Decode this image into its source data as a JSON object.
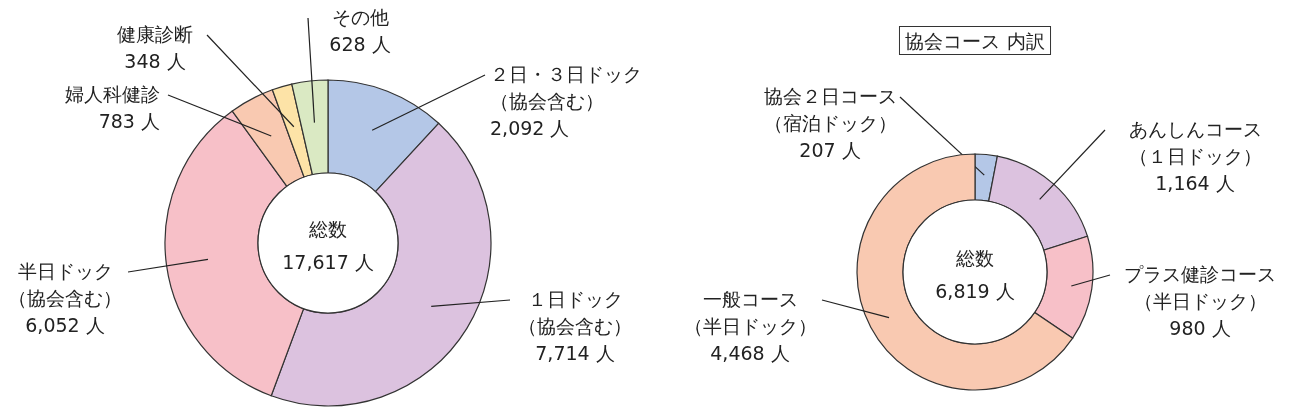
{
  "chart_data": [
    {
      "type": "donut",
      "categories": [
        "２日・３日ドック（協会含む）",
        "１日ドック（協会含む）",
        "半日ドック（協会含む）",
        "婦人科健診",
        "健康診断",
        "その他"
      ],
      "values": [
        2092,
        7714,
        6052,
        783,
        348,
        628
      ],
      "value_labels": [
        "2,092 人",
        "7,714 人",
        "6,052 人",
        "783 人",
        "348 人",
        "628 人"
      ],
      "colors": [
        "#b4c7e7",
        "#dcc2df",
        "#f7c0c8",
        "#f9c9b1",
        "#fde3a7",
        "#dae9c3"
      ],
      "annotations": [
        "総数",
        "17,617 人"
      ]
    },
    {
      "type": "donut",
      "title": "協会コース 内訳",
      "categories": [
        "協会２日コース（宿泊ドック）",
        "あんしんコース（１日ドック）",
        "プラス健診コース（半日ドック）",
        "一般コース（半日ドック）"
      ],
      "values": [
        207,
        1164,
        980,
        4468
      ],
      "value_labels": [
        "207 人",
        "1,164 人",
        "980 人",
        "4,468 人"
      ],
      "colors": [
        "#b4c7e7",
        "#dcc2df",
        "#f7c0c8",
        "#f9c9b1"
      ],
      "annotations": [
        "総数",
        "6,819 人"
      ]
    }
  ]
}
